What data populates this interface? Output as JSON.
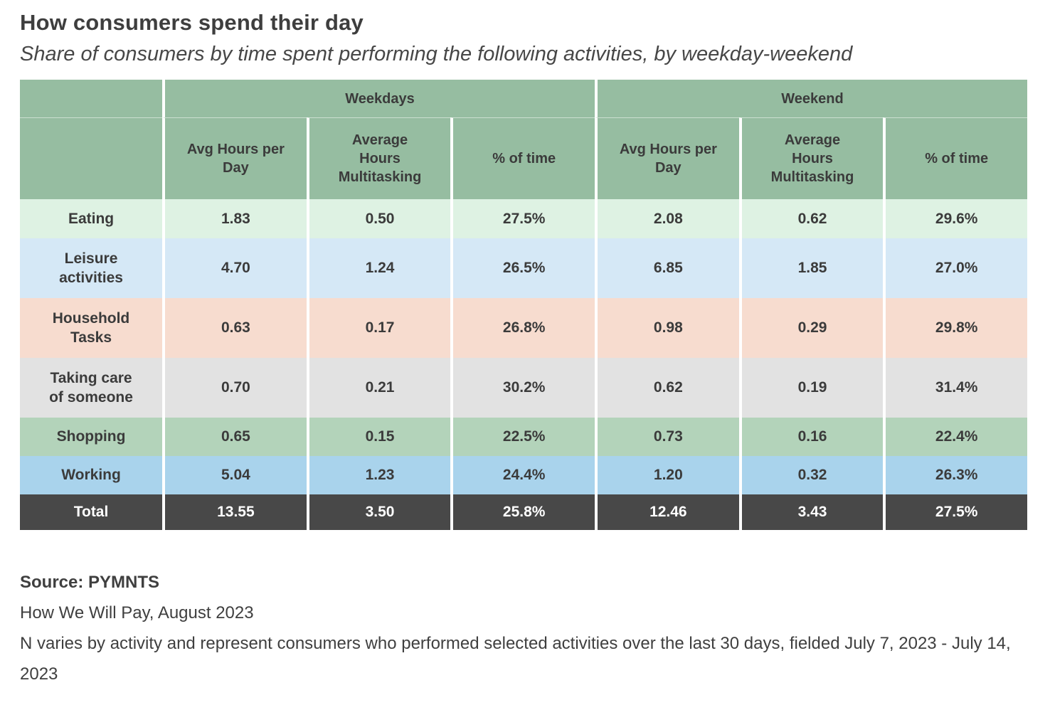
{
  "title": "How consumers spend their day",
  "subtitle": "Share of consumers by time spent performing the following activities, by weekday-weekend",
  "chart_data": {
    "type": "table",
    "title": "How consumers spend their day",
    "subtitle": "Share of consumers by time spent performing the following activities, by weekday-weekend",
    "column_groups": [
      {
        "label": "Weekdays",
        "colspan": 3
      },
      {
        "label": "Weekend",
        "colspan": 3
      }
    ],
    "columns": [
      "Avg Hours per\nDay",
      "Average\nHours\nMultitasking",
      "% of time",
      "Avg Hours per\nDay",
      "Average\nHours\nMultitasking",
      "% of time"
    ],
    "rows": [
      {
        "label": "Eating",
        "values": [
          "1.83",
          "0.50",
          "27.5%",
          "2.08",
          "0.62",
          "29.6%"
        ]
      },
      {
        "label": "Leisure\nactivities",
        "values": [
          "4.70",
          "1.24",
          "26.5%",
          "6.85",
          "1.85",
          "27.0%"
        ]
      },
      {
        "label": "Household\nTasks",
        "values": [
          "0.63",
          "0.17",
          "26.8%",
          "0.98",
          "0.29",
          "29.8%"
        ]
      },
      {
        "label": "Taking care\nof someone",
        "values": [
          "0.70",
          "0.21",
          "30.2%",
          "0.62",
          "0.19",
          "31.4%"
        ]
      },
      {
        "label": "Shopping",
        "values": [
          "0.65",
          "0.15",
          "22.5%",
          "0.73",
          "0.16",
          "22.4%"
        ]
      },
      {
        "label": "Working",
        "values": [
          "5.04",
          "1.23",
          "24.4%",
          "1.20",
          "0.32",
          "26.3%"
        ]
      }
    ],
    "total_row": {
      "label": "Total",
      "values": [
        "13.55",
        "3.50",
        "25.8%",
        "12.46",
        "3.43",
        "27.5%"
      ]
    }
  },
  "footer": {
    "source": "Source: PYMNTS",
    "report": "How We Will Pay, August 2023",
    "note": "N varies by activity and represent consumers who performed selected activities over the last 30 days, fielded July 7, 2023 - July 14, 2023"
  },
  "colors": {
    "header_green": "#96bda1",
    "row_eating": "#def2e3",
    "row_leisure": "#d5e8f6",
    "row_household": "#f7dccf",
    "row_taking_care": "#e2e2e2",
    "row_shopping": "#b3d3ba",
    "row_working": "#a9d3ec",
    "row_total_bg": "#484848",
    "row_total_text": "#ffffff"
  }
}
